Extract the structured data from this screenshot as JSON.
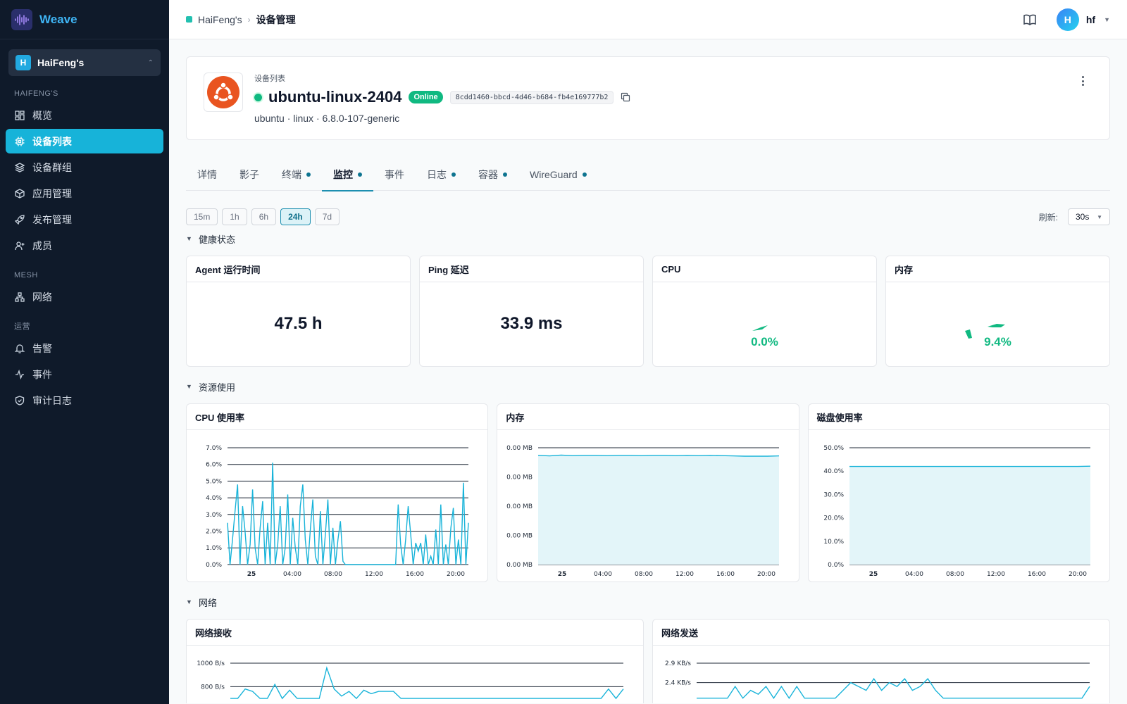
{
  "sidebar": {
    "brand": "Weave",
    "org": {
      "badge": "H",
      "name": "HaiFeng's"
    },
    "sections": [
      {
        "title": "HAIFENG'S",
        "items": [
          {
            "label": "概览",
            "icon": "dashboard-icon",
            "active": false
          },
          {
            "label": "设备列表",
            "icon": "chip-icon",
            "active": true
          },
          {
            "label": "设备群组",
            "icon": "layers-icon",
            "active": false
          },
          {
            "label": "应用管理",
            "icon": "package-icon",
            "active": false
          },
          {
            "label": "发布管理",
            "icon": "rocket-icon",
            "active": false
          },
          {
            "label": "成员",
            "icon": "user-plus-icon",
            "active": false
          }
        ]
      },
      {
        "title": "MESH",
        "items": [
          {
            "label": "网络",
            "icon": "network-icon",
            "active": false
          }
        ]
      },
      {
        "title": "运营",
        "items": [
          {
            "label": "告警",
            "icon": "bell-icon",
            "active": false
          },
          {
            "label": "事件",
            "icon": "activity-icon",
            "active": false
          },
          {
            "label": "审计日志",
            "icon": "shield-icon",
            "active": false
          }
        ]
      }
    ]
  },
  "topbar": {
    "breadcrumb": [
      "HaiFeng's",
      "设备管理"
    ],
    "user": {
      "initial": "H",
      "name": "hf"
    }
  },
  "device": {
    "kicker": "设备列表",
    "name": "ubuntu-linux-2404",
    "status": "Online",
    "id": "8cdd1460-bbcd-4d46-b684-fb4e169777b2",
    "subtitle": "ubuntu · linux · 6.8.0-107-generic",
    "os_color": "#e95420"
  },
  "tabs": [
    {
      "label": "详情",
      "dot": false,
      "active": false
    },
    {
      "label": "影子",
      "dot": false,
      "active": false
    },
    {
      "label": "终端",
      "dot": true,
      "active": false
    },
    {
      "label": "监控",
      "dot": true,
      "active": true
    },
    {
      "label": "事件",
      "dot": false,
      "active": false
    },
    {
      "label": "日志",
      "dot": true,
      "active": false
    },
    {
      "label": "容器",
      "dot": true,
      "active": false
    },
    {
      "label": "WireGuard",
      "dot": true,
      "active": false
    }
  ],
  "time_ranges": [
    {
      "label": "15m",
      "active": false
    },
    {
      "label": "1h",
      "active": false
    },
    {
      "label": "6h",
      "active": false
    },
    {
      "label": "24h",
      "active": true
    },
    {
      "label": "7d",
      "active": false
    }
  ],
  "refresh": {
    "label": "刷新:",
    "value": "30s"
  },
  "sections": {
    "health": "健康状态",
    "resources": "资源使用",
    "network": "网络"
  },
  "health_cards": [
    {
      "title": "Agent 运行时间",
      "value": "47.5 h"
    },
    {
      "title": "Ping 延迟",
      "value": "33.9 ms"
    },
    {
      "title": "CPU",
      "value": "0.0%",
      "gauge_fraction": 0.0
    },
    {
      "title": "内存",
      "value": "9.4%",
      "gauge_fraction": 0.094
    }
  ],
  "accent": "#17b3d9",
  "chart_data": [
    {
      "type": "line",
      "title": "CPU 使用率",
      "y_ticks": [
        "7.0%",
        "6.0%",
        "5.0%",
        "4.0%",
        "3.0%",
        "2.0%",
        "1.0%",
        "0.0%"
      ],
      "ylim": [
        0,
        7
      ],
      "x_ticks": [
        "25",
        "04:00",
        "08:00",
        "12:00",
        "16:00",
        "20:00"
      ],
      "series": [
        {
          "values": [
            2.5,
            0,
            1.5,
            3.2,
            4.8,
            0,
            3.5,
            2,
            0,
            1.2,
            4.5,
            1,
            0,
            2.2,
            3.8,
            0,
            2.5,
            0,
            6.1,
            0,
            1.2,
            3.5,
            0,
            1,
            4.2,
            0,
            2.8,
            1,
            0,
            3.5,
            4.8,
            1.5,
            0,
            2.1,
            3.9,
            0.5,
            0,
            3.2,
            0,
            1.8,
            3.9,
            0,
            2.2,
            0,
            1.5,
            2.6,
            0.2,
            0,
            0,
            0,
            0,
            0,
            0,
            0,
            0,
            0,
            0,
            0,
            0,
            0,
            0,
            0,
            0,
            0,
            0,
            0,
            0,
            0,
            3.6,
            1.2,
            0,
            1.5,
            3.5,
            1.8,
            0,
            1.3,
            0.8,
            1.3,
            0,
            1.8,
            0,
            0.5,
            0,
            2.1,
            0,
            3.6,
            0,
            1.2,
            0,
            2.2,
            3.4,
            0,
            1.5,
            0,
            4.9,
            0,
            2.5
          ]
        }
      ]
    },
    {
      "type": "area",
      "title": "内存",
      "y_ticks": [
        "0.00 MB",
        "0.00 MB",
        "0.00 MB",
        "0.00 MB",
        "0.00 MB"
      ],
      "ylim": [
        0,
        4
      ],
      "x_ticks": [
        "25",
        "04:00",
        "08:00",
        "12:00",
        "16:00",
        "20:00"
      ],
      "series": [
        {
          "values": [
            3.74,
            3.72,
            3.75,
            3.73,
            3.74,
            3.74,
            3.73,
            3.74,
            3.74,
            3.73,
            3.74,
            3.74,
            3.73,
            3.74,
            3.73,
            3.74,
            3.73,
            3.72,
            3.71,
            3.71,
            3.71,
            3.72
          ]
        }
      ]
    },
    {
      "type": "area",
      "title": "磁盘使用率",
      "y_ticks": [
        "50.0%",
        "40.0%",
        "30.0%",
        "20.0%",
        "10.0%",
        "0.0%"
      ],
      "ylim": [
        0,
        50
      ],
      "x_ticks": [
        "25",
        "04:00",
        "08:00",
        "12:00",
        "16:00",
        "20:00"
      ],
      "series": [
        {
          "values": [
            42,
            42,
            42,
            42,
            42,
            42,
            42,
            42,
            42,
            42,
            42,
            42,
            42,
            42,
            42,
            42,
            42,
            42,
            42,
            42.1
          ]
        }
      ]
    },
    {
      "type": "line",
      "title": "网络接收",
      "y_ticks": [
        "1000 B/s",
        "800 B/s"
      ],
      "ylim": [
        0,
        1000
      ],
      "x_ticks": [],
      "series": [
        {
          "values": [
            700,
            700,
            780,
            760,
            700,
            700,
            820,
            700,
            770,
            700,
            700,
            700,
            700,
            960,
            780,
            720,
            760,
            700,
            770,
            740,
            760,
            760,
            760,
            700,
            700,
            700,
            700,
            700,
            700,
            700,
            700,
            700,
            700,
            700,
            700,
            700,
            700,
            700,
            700,
            700,
            700,
            700,
            700,
            700,
            700,
            700,
            700,
            700,
            700,
            700,
            700,
            780,
            700,
            780
          ]
        }
      ]
    },
    {
      "type": "line",
      "title": "网络发送",
      "y_ticks": [
        "2.9 KB/s",
        "2.4 KB/s"
      ],
      "ylim": [
        0,
        2.9
      ],
      "x_ticks": [],
      "series": [
        {
          "values": [
            2,
            2,
            2,
            2,
            2,
            2.3,
            2,
            2.2,
            2.1,
            2.3,
            2,
            2.3,
            2,
            2.3,
            2,
            2,
            2,
            2,
            2,
            2.2,
            2.4,
            2.3,
            2.2,
            2.5,
            2.2,
            2.4,
            2.3,
            2.5,
            2.2,
            2.3,
            2.5,
            2.2,
            2,
            2,
            2,
            2,
            2,
            2,
            2,
            2,
            2,
            2,
            2,
            2,
            2,
            2,
            2,
            2,
            2,
            2,
            2,
            2.3
          ]
        }
      ]
    }
  ]
}
